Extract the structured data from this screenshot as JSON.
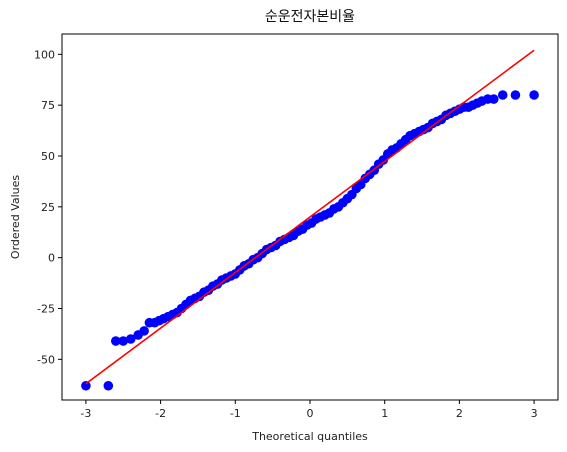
{
  "chart_data": {
    "type": "scatter",
    "title": "순운전자본비율",
    "xlabel": "Theoretical quantiles",
    "ylabel": "Ordered Values",
    "xlim": [
      -3.32,
      3.32
    ],
    "ylim": [
      -70,
      110
    ],
    "xticks": [
      -3,
      -2,
      -1,
      0,
      1,
      2,
      3
    ],
    "yticks": [
      -50,
      -25,
      0,
      25,
      50,
      75,
      100
    ],
    "grid": false,
    "legend": "none",
    "series": [
      {
        "kind": "points",
        "color": "#0000ff",
        "points": [
          [
            -3.0,
            -63
          ],
          [
            -2.7,
            -63
          ],
          [
            -2.6,
            -41
          ],
          [
            -2.5,
            -41
          ],
          [
            -2.4,
            -40
          ],
          [
            -2.3,
            -38
          ],
          [
            -2.22,
            -36
          ],
          [
            -2.15,
            -32
          ],
          [
            -2.08,
            -32
          ],
          [
            -2.02,
            -31
          ],
          [
            -1.96,
            -30
          ],
          [
            -1.9,
            -29
          ],
          [
            -1.84,
            -28
          ],
          [
            -1.78,
            -27
          ],
          [
            -1.72,
            -25
          ],
          [
            -1.66,
            -23
          ],
          [
            -1.6,
            -21
          ],
          [
            -1.54,
            -20
          ],
          [
            -1.48,
            -19
          ],
          [
            -1.42,
            -17
          ],
          [
            -1.36,
            -16
          ],
          [
            -1.3,
            -14
          ],
          [
            -1.24,
            -13
          ],
          [
            -1.18,
            -11
          ],
          [
            -1.12,
            -10
          ],
          [
            -1.06,
            -9
          ],
          [
            -1.0,
            -8
          ],
          [
            -0.94,
            -6
          ],
          [
            -0.88,
            -4
          ],
          [
            -0.82,
            -3
          ],
          [
            -0.76,
            -1
          ],
          [
            -0.7,
            0
          ],
          [
            -0.64,
            2
          ],
          [
            -0.58,
            4
          ],
          [
            -0.52,
            5
          ],
          [
            -0.46,
            6
          ],
          [
            -0.4,
            8
          ],
          [
            -0.34,
            9
          ],
          [
            -0.28,
            10
          ],
          [
            -0.22,
            11
          ],
          [
            -0.16,
            13
          ],
          [
            -0.1,
            14
          ],
          [
            -0.04,
            16
          ],
          [
            0.02,
            17
          ],
          [
            0.08,
            19
          ],
          [
            0.14,
            20
          ],
          [
            0.2,
            21
          ],
          [
            0.26,
            22
          ],
          [
            0.32,
            24
          ],
          [
            0.38,
            25
          ],
          [
            0.44,
            27
          ],
          [
            0.5,
            29
          ],
          [
            0.56,
            31
          ],
          [
            0.62,
            34
          ],
          [
            0.68,
            36
          ],
          [
            0.74,
            39
          ],
          [
            0.8,
            41
          ],
          [
            0.86,
            43
          ],
          [
            0.92,
            46
          ],
          [
            0.98,
            48
          ],
          [
            1.04,
            51
          ],
          [
            1.1,
            53
          ],
          [
            1.16,
            54
          ],
          [
            1.22,
            56
          ],
          [
            1.28,
            58
          ],
          [
            1.34,
            60
          ],
          [
            1.4,
            61
          ],
          [
            1.46,
            62
          ],
          [
            1.52,
            63
          ],
          [
            1.58,
            64
          ],
          [
            1.64,
            66
          ],
          [
            1.7,
            67
          ],
          [
            1.76,
            68
          ],
          [
            1.82,
            70
          ],
          [
            1.88,
            71
          ],
          [
            1.94,
            72
          ],
          [
            2.0,
            73
          ],
          [
            2.06,
            74
          ],
          [
            2.12,
            74
          ],
          [
            2.18,
            75
          ],
          [
            2.24,
            76
          ],
          [
            2.3,
            77
          ],
          [
            2.38,
            78
          ],
          [
            2.46,
            78
          ],
          [
            2.58,
            80
          ],
          [
            2.75,
            80
          ],
          [
            3.0,
            80
          ]
        ]
      },
      {
        "kind": "line",
        "color": "#ff0000",
        "points": [
          [
            -3.0,
            -62
          ],
          [
            3.0,
            102
          ]
        ]
      }
    ]
  }
}
